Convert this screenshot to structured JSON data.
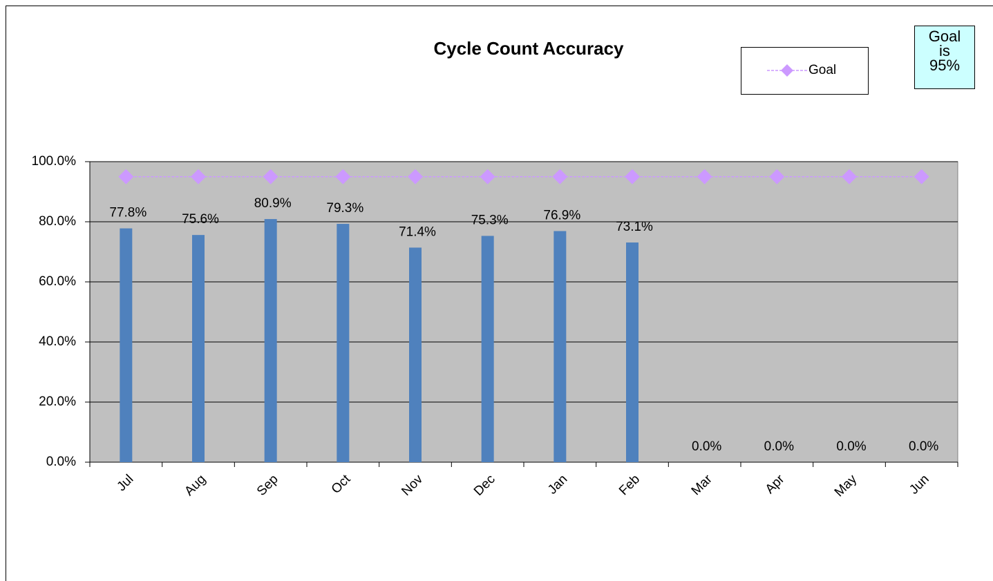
{
  "chart_data": {
    "type": "bar",
    "title": "Cycle Count Accuracy",
    "annotation": "Goal is 95%",
    "categories": [
      "Jul",
      "Aug",
      "Sep",
      "Oct",
      "Nov",
      "Dec",
      "Jan",
      "Feb",
      "Mar",
      "Apr",
      "May",
      "Jun"
    ],
    "series": [
      {
        "type": "bar",
        "color": "#4f81bd",
        "values": [
          77.8,
          75.6,
          80.9,
          79.3,
          71.4,
          75.3,
          76.9,
          73.1,
          0,
          0,
          0,
          0
        ],
        "value_labels": [
          "77.8%",
          "75.6%",
          "80.9%",
          "79.3%",
          "71.4%",
          "75.3%",
          "76.9%",
          "73.1%",
          "0.0%",
          "0.0%",
          "0.0%",
          "0.0%"
        ]
      },
      {
        "type": "line",
        "name": "Goal",
        "color": "#cc99ff",
        "values": [
          95,
          95,
          95,
          95,
          95,
          95,
          95,
          95,
          95,
          95,
          95,
          95
        ]
      }
    ],
    "ylim": [
      0,
      100
    ],
    "yticks": [
      {
        "value": 0,
        "label": "0.0%"
      },
      {
        "value": 20,
        "label": "20.0%"
      },
      {
        "value": 40,
        "label": "40.0%"
      },
      {
        "value": 60,
        "label": "60.0%"
      },
      {
        "value": 80,
        "label": "80.0%"
      },
      {
        "value": 100,
        "label": "100.0%"
      }
    ],
    "grid": true,
    "legend": "top-right"
  }
}
